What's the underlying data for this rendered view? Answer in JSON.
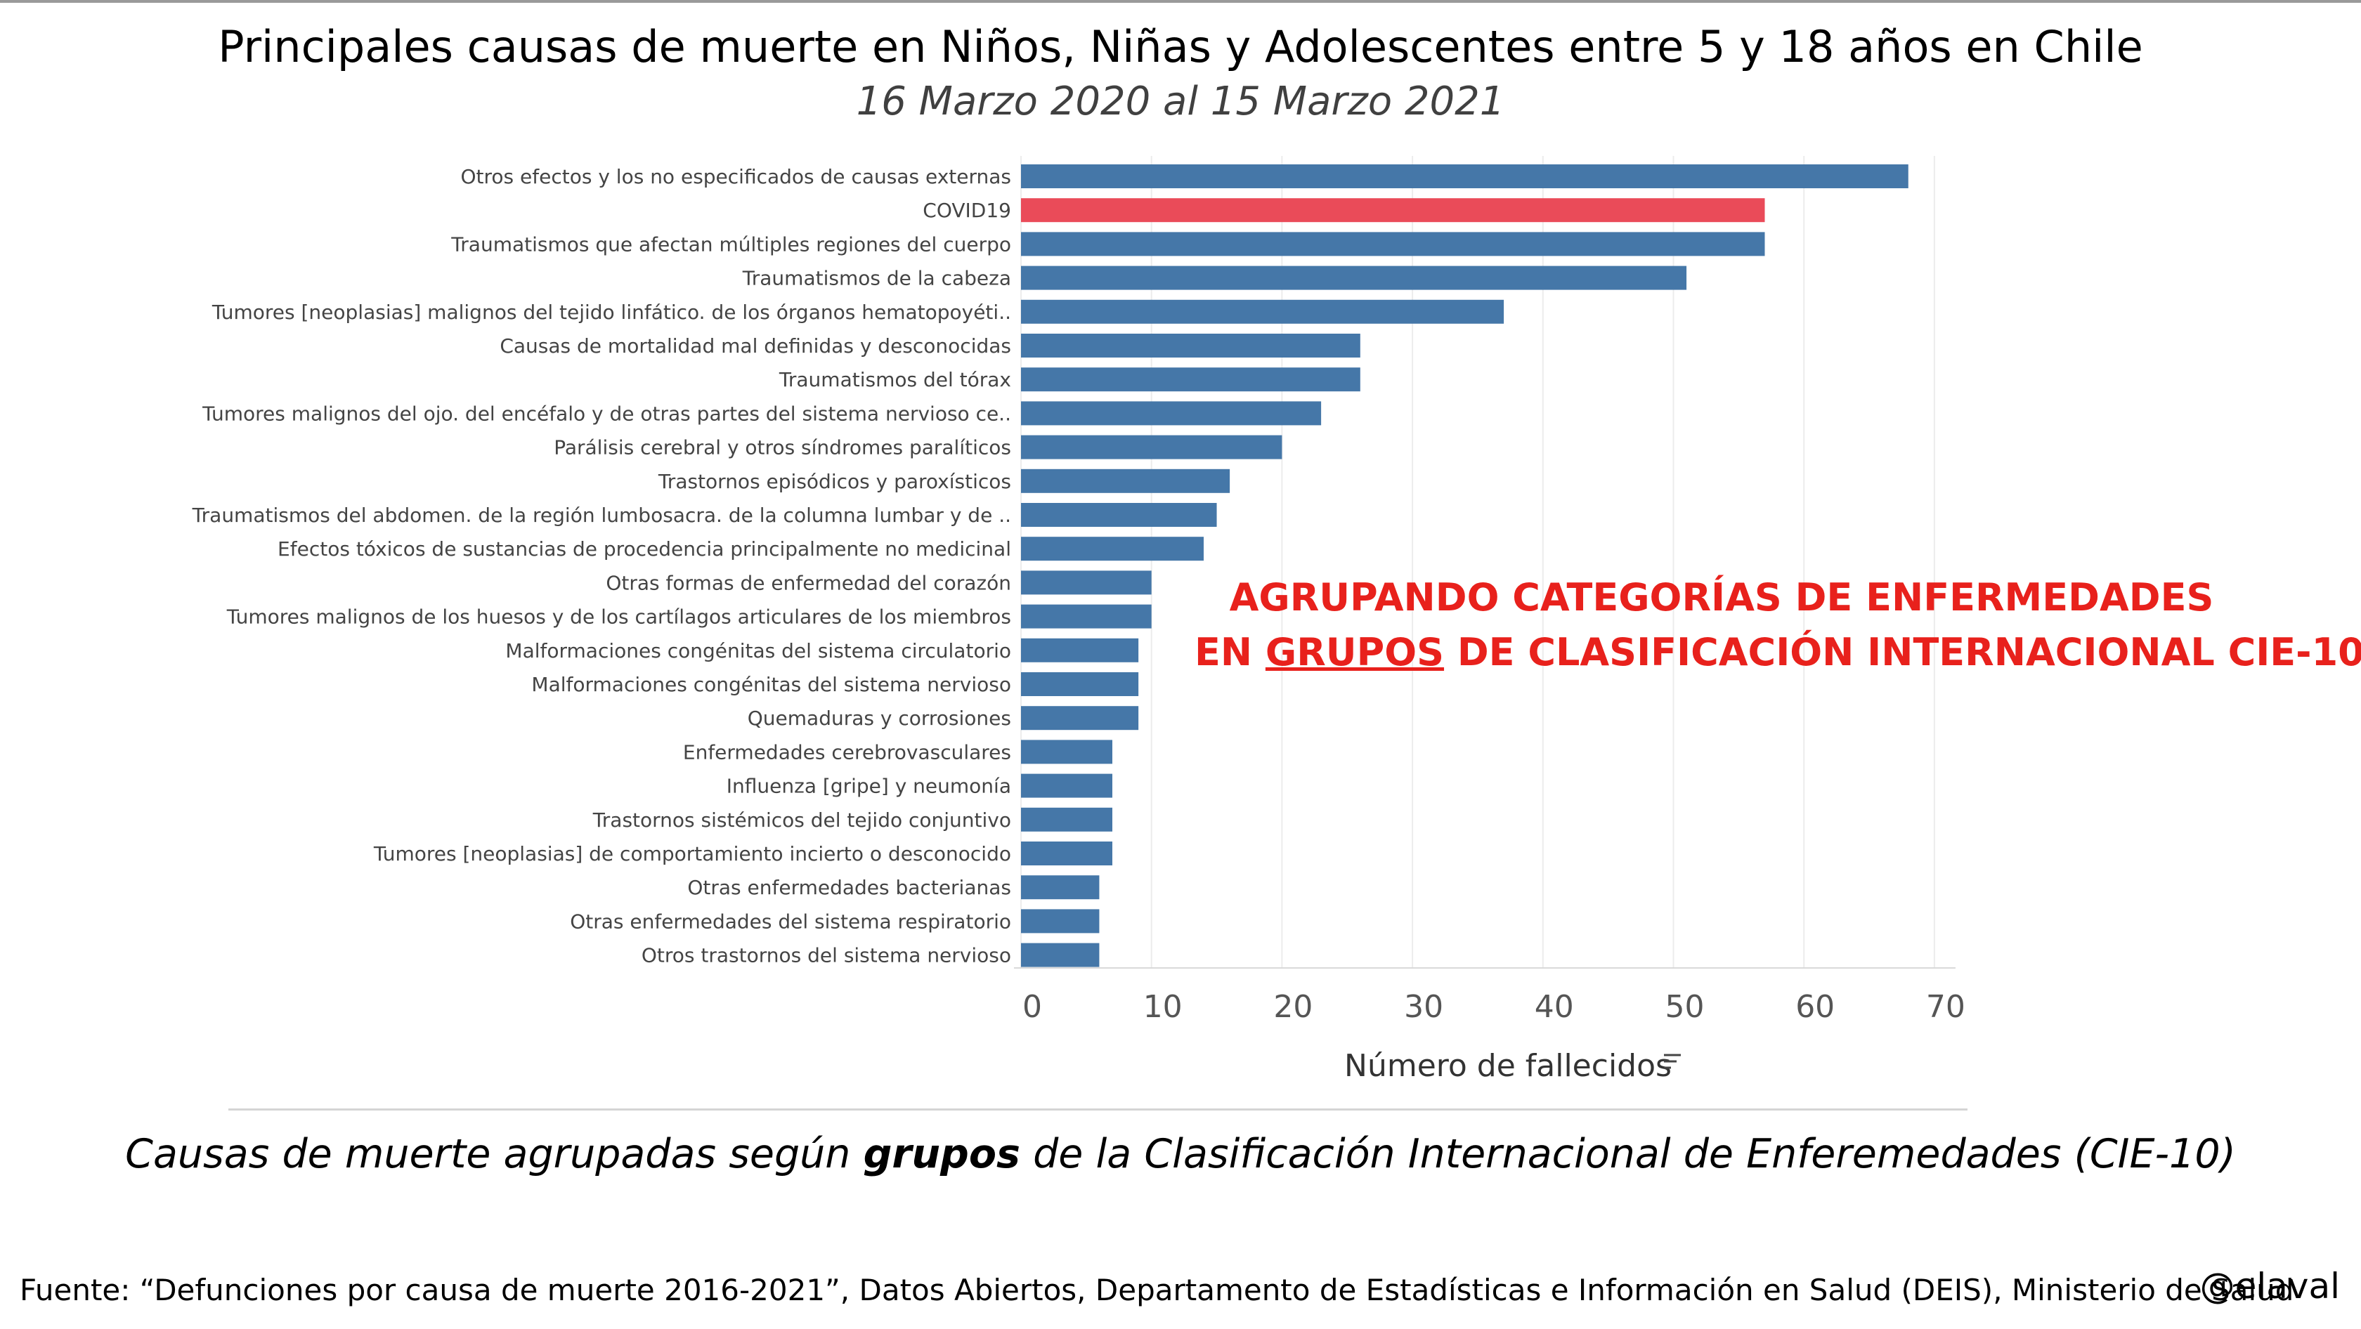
{
  "header": {
    "title": "Principales causas de muerte en Niños, Niñas y Adolescentes entre 5 y 18 años en Chile",
    "subtitle": "16 Marzo 2020 al 15 Marzo 2021"
  },
  "annotation": {
    "line1": "AGRUPANDO CATEGORÍAS DE ENFERMEDADES",
    "line2_pre": "EN ",
    "line2_underlined": "GRUPOS",
    "line2_post": " DE CLASIFICACIÓN INTERNACIONAL CIE-10"
  },
  "caption": {
    "pre": "Causas de muerte agrupadas según ",
    "bold": "grupos",
    "post": " de la Clasificación Internacional de Enferemedades (CIE-10)"
  },
  "footer": {
    "source": "Fuente: “Defunciones por causa de muerte 2016-2021”, Datos Abiertos, Departamento de Estadísticas e Información en Salud (DEIS), Ministerio de Salud",
    "handle": "@elaval"
  },
  "icons": {
    "sort": "sort-descending-icon"
  },
  "colors": {
    "bar": "#4577a8",
    "highlight": "#ea4b59",
    "annotation": "#e8211c",
    "tick_text": "#555555",
    "category_text": "#444444",
    "gridline": "#ececec"
  },
  "chart_data": {
    "type": "bar",
    "orientation": "horizontal",
    "xlabel": "Número de fallecidos",
    "xlim": [
      0,
      70
    ],
    "xticks": [
      0,
      10,
      20,
      30,
      40,
      50,
      60,
      70
    ],
    "grid": true,
    "highlight_category": "COVID19",
    "categories": [
      "Otros efectos y los no especificados de causas externas",
      "COVID19",
      "Traumatismos que afectan múltiples regiones del cuerpo",
      "Traumatismos de la cabeza",
      "Tumores [neoplasias] malignos del tejido linfático. de los órganos hematopoyéti..",
      "Causas de mortalidad mal definidas y desconocidas",
      "Traumatismos del tórax",
      "Tumores malignos del ojo. del encéfalo y de otras partes del sistema nervioso ce..",
      "Parálisis cerebral y otros síndromes paralíticos",
      "Trastornos episódicos y paroxísticos",
      "Traumatismos del abdomen. de la región lumbosacra. de la columna lumbar y de ..",
      "Efectos tóxicos de sustancias de procedencia principalmente no medicinal",
      "Otras formas de enfermedad del corazón",
      "Tumores malignos de los huesos y de los cartílagos articulares de los miembros",
      "Malformaciones congénitas del sistema circulatorio",
      "Malformaciones congénitas del sistema nervioso",
      "Quemaduras y corrosiones",
      "Enfermedades cerebrovasculares",
      "Influenza [gripe] y neumonía",
      "Trastornos sistémicos del tejido conjuntivo",
      "Tumores [neoplasias] de comportamiento incierto o desconocido",
      "Otras enfermedades bacterianas",
      "Otras enfermedades del sistema respiratorio",
      "Otros trastornos del sistema nervioso"
    ],
    "values": [
      68,
      57,
      57,
      51,
      37,
      26,
      26,
      23,
      20,
      16,
      15,
      14,
      10,
      10,
      9,
      9,
      9,
      7,
      7,
      7,
      7,
      6,
      6,
      6
    ]
  }
}
